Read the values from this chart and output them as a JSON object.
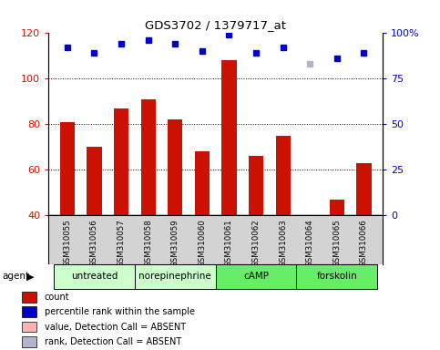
{
  "title": "GDS3702 / 1379717_at",
  "samples": [
    "GSM310055",
    "GSM310056",
    "GSM310057",
    "GSM310058",
    "GSM310059",
    "GSM310060",
    "GSM310061",
    "GSM310062",
    "GSM310063",
    "GSM310064",
    "GSM310065",
    "GSM310066"
  ],
  "bar_values": [
    81,
    70,
    87,
    91,
    82,
    68,
    108,
    66,
    75,
    40.5,
    47,
    63
  ],
  "bar_absent": [
    false,
    false,
    false,
    false,
    false,
    false,
    false,
    false,
    false,
    true,
    false,
    false
  ],
  "rank_values": [
    92,
    89,
    94,
    96,
    94,
    90,
    99,
    89,
    92,
    83,
    86,
    89
  ],
  "rank_absent": [
    false,
    false,
    false,
    false,
    false,
    false,
    false,
    false,
    false,
    true,
    false,
    false
  ],
  "ylim_left": [
    40,
    120
  ],
  "ylim_right": [
    0,
    100
  ],
  "yticks_left": [
    40,
    60,
    80,
    100,
    120
  ],
  "ytick_labels_left": [
    "40",
    "60",
    "80",
    "100",
    "120"
  ],
  "yticks_right": [
    0,
    25,
    50,
    75,
    100
  ],
  "ytick_labels_right": [
    "0",
    "25",
    "50",
    "75",
    "100%"
  ],
  "bar_color": "#cc1100",
  "bar_absent_color": "#ffb3b3",
  "rank_color": "#0000cc",
  "rank_absent_color": "#b3b3cc",
  "bar_width": 0.55,
  "group_defs": [
    {
      "label": "untreated",
      "start": 0,
      "end": 2,
      "color": "#ccffcc"
    },
    {
      "label": "norepinephrine",
      "start": 3,
      "end": 5,
      "color": "#ccffcc"
    },
    {
      "label": "cAMP",
      "start": 6,
      "end": 8,
      "color": "#66ee66"
    },
    {
      "label": "forskolin",
      "start": 9,
      "end": 11,
      "color": "#66ee66"
    }
  ],
  "legend_items": [
    {
      "color": "#cc1100",
      "label": "count"
    },
    {
      "color": "#0000cc",
      "label": "percentile rank within the sample"
    },
    {
      "color": "#ffb3b3",
      "label": "value, Detection Call = ABSENT"
    },
    {
      "color": "#b3b3cc",
      "label": "rank, Detection Call = ABSENT"
    }
  ]
}
